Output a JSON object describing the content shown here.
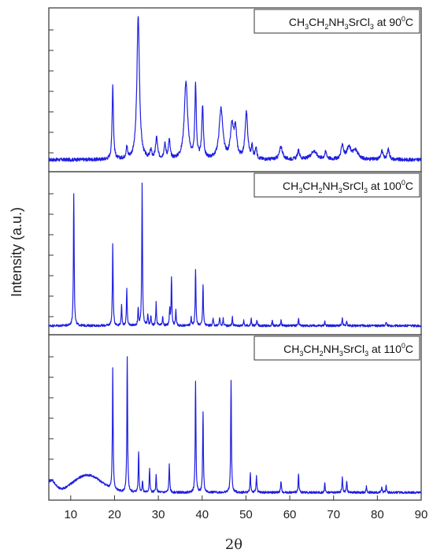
{
  "chart_data": {
    "type": "line",
    "xlabel": "2θ",
    "ylabel": "Intensity (a.u.)",
    "xlim": [
      5,
      90
    ],
    "x_ticks": [
      10,
      20,
      30,
      40,
      50,
      60,
      70,
      80,
      90
    ],
    "line_color": "#1f1fe0",
    "panels": [
      {
        "label": {
          "pre": "CH",
          "s1": "3",
          "m1": "CH",
          "s2": "2",
          "m2": "NH",
          "s3": "3",
          "m3": "SrCl",
          "s4": "3",
          "m4": " at 90",
          "sup": "0",
          "post": "C"
        },
        "baseline": 0.05,
        "noise": 0.012,
        "humps": [],
        "peaks": [
          [
            19.6,
            0.52,
            0.18
          ],
          [
            22.8,
            0.08,
            0.2
          ],
          [
            25.4,
            1.0,
            0.35
          ],
          [
            28.3,
            0.06,
            0.2
          ],
          [
            29.6,
            0.15,
            0.25
          ],
          [
            31.5,
            0.1,
            0.25
          ],
          [
            32.5,
            0.13,
            0.22
          ],
          [
            36.3,
            0.54,
            0.45
          ],
          [
            38.5,
            0.5,
            0.2
          ],
          [
            40.1,
            0.36,
            0.22
          ],
          [
            44.3,
            0.35,
            0.5
          ],
          [
            46.8,
            0.22,
            0.4
          ],
          [
            47.6,
            0.2,
            0.35
          ],
          [
            50.1,
            0.32,
            0.35
          ],
          [
            51.4,
            0.08,
            0.2
          ],
          [
            52.3,
            0.08,
            0.2
          ],
          [
            58.0,
            0.09,
            0.4
          ],
          [
            62.0,
            0.06,
            0.3
          ],
          [
            65.5,
            0.06,
            0.8
          ],
          [
            68.2,
            0.05,
            0.3
          ],
          [
            72.0,
            0.1,
            0.3
          ],
          [
            73.5,
            0.08,
            0.6
          ],
          [
            75.0,
            0.06,
            0.7
          ],
          [
            81.0,
            0.06,
            0.3
          ],
          [
            82.5,
            0.07,
            0.3
          ]
        ]
      },
      {
        "label": {
          "pre": "CH",
          "s1": "3",
          "m1": "CH",
          "s2": "2",
          "m2": "NH",
          "s3": "3",
          "m3": "SrCl",
          "s4": "3",
          "m4": " at 100",
          "sup": "0",
          "post": "C"
        },
        "baseline": 0.03,
        "noise": 0.008,
        "humps": [],
        "peaks": [
          [
            10.7,
            0.93,
            0.1
          ],
          [
            19.6,
            0.58,
            0.1
          ],
          [
            21.6,
            0.14,
            0.1
          ],
          [
            22.8,
            0.26,
            0.1
          ],
          [
            25.4,
            0.12,
            0.1
          ],
          [
            26.3,
            1.0,
            0.1
          ],
          [
            27.6,
            0.08,
            0.1
          ],
          [
            28.3,
            0.07,
            0.1
          ],
          [
            29.5,
            0.16,
            0.1
          ],
          [
            31.0,
            0.06,
            0.1
          ],
          [
            32.6,
            0.11,
            0.1
          ],
          [
            33.0,
            0.34,
            0.1
          ],
          [
            34.0,
            0.11,
            0.1
          ],
          [
            37.5,
            0.06,
            0.1
          ],
          [
            38.5,
            0.4,
            0.1
          ],
          [
            40.2,
            0.29,
            0.1
          ],
          [
            42.5,
            0.05,
            0.1
          ],
          [
            44.0,
            0.06,
            0.1
          ],
          [
            44.8,
            0.05,
            0.1
          ],
          [
            46.9,
            0.06,
            0.1
          ],
          [
            49.5,
            0.04,
            0.1
          ],
          [
            51.2,
            0.05,
            0.1
          ],
          [
            52.5,
            0.04,
            0.1
          ],
          [
            56.0,
            0.04,
            0.1
          ],
          [
            58.0,
            0.04,
            0.1
          ],
          [
            62.0,
            0.05,
            0.1
          ],
          [
            68.0,
            0.03,
            0.1
          ],
          [
            72.0,
            0.05,
            0.1
          ],
          [
            73.0,
            0.03,
            0.1
          ],
          [
            82.0,
            0.03,
            0.1
          ]
        ]
      },
      {
        "label": {
          "pre": "CH",
          "s1": "3",
          "m1": "CH",
          "s2": "2",
          "m2": "NH",
          "s3": "3",
          "m3": "SrCl",
          "s4": "3",
          "m4": " at 110",
          "sup": "0",
          "post": "C"
        },
        "baseline": 0.02,
        "noise": 0.008,
        "humps": [
          [
            5.5,
            0.08,
            1.0
          ],
          [
            13.8,
            0.12,
            3.2
          ]
        ],
        "peaks": [
          [
            19.6,
            0.83,
            0.1
          ],
          [
            22.9,
            0.93,
            0.1
          ],
          [
            25.5,
            0.28,
            0.1
          ],
          [
            26.4,
            0.08,
            0.1
          ],
          [
            28.0,
            0.16,
            0.1
          ],
          [
            29.5,
            0.12,
            0.1
          ],
          [
            32.5,
            0.2,
            0.1
          ],
          [
            38.5,
            0.77,
            0.1
          ],
          [
            40.2,
            0.55,
            0.1
          ],
          [
            46.6,
            0.78,
            0.1
          ],
          [
            51.0,
            0.13,
            0.1
          ],
          [
            52.4,
            0.12,
            0.1
          ],
          [
            58.0,
            0.08,
            0.1
          ],
          [
            62.0,
            0.13,
            0.1
          ],
          [
            68.0,
            0.06,
            0.1
          ],
          [
            72.0,
            0.11,
            0.1
          ],
          [
            73.0,
            0.08,
            0.1
          ],
          [
            77.5,
            0.04,
            0.1
          ],
          [
            81.0,
            0.04,
            0.1
          ],
          [
            82.0,
            0.05,
            0.1
          ]
        ]
      }
    ]
  }
}
